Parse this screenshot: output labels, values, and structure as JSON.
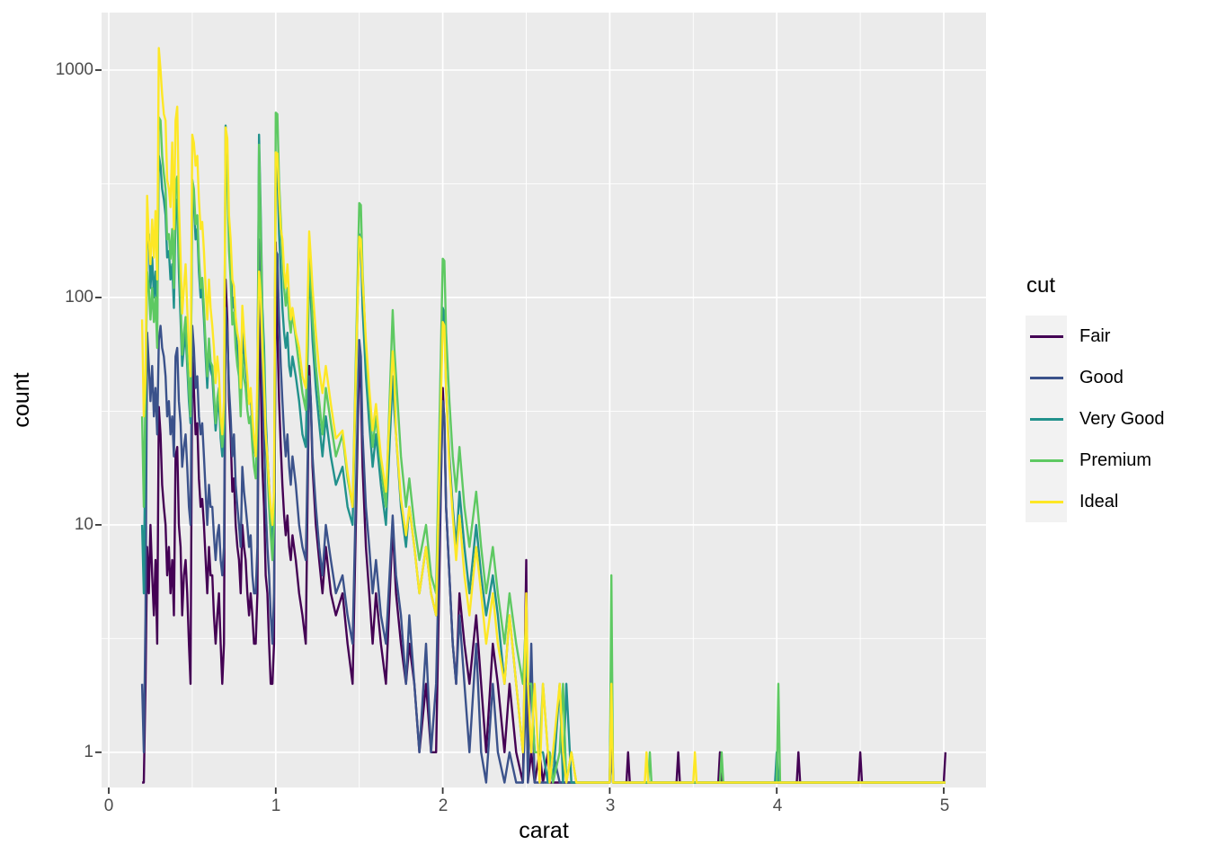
{
  "chart_data": {
    "type": "line",
    "subtype": "freqpoly",
    "title": "",
    "xlabel": "carat",
    "ylabel": "count",
    "legend_title": "cut",
    "legend_position": "right",
    "y_scale": "log10",
    "grid": true,
    "panel_background": "#EBEBEB",
    "grid_color": "#FFFFFF",
    "legend_key_background": "#F2F2F2",
    "tick_color": "#333333",
    "tick_label_color": "#4D4D4D",
    "axis_title_color": "#000000",
    "xlim": [
      -0.043,
      5.253
    ],
    "ylim": [
      0.7,
      1790
    ],
    "x_ticks": [
      0,
      1,
      2,
      3,
      4,
      5
    ],
    "x_tick_labels": [
      "0",
      "1",
      "2",
      "3",
      "4",
      "5"
    ],
    "y_ticks": [
      1,
      10,
      100,
      1000
    ],
    "y_tick_labels": [
      "1",
      "10",
      "100",
      "1000"
    ],
    "minor_x": [
      0.5,
      1.5,
      2.5,
      3.5,
      4.5
    ],
    "minor_y": [
      3.162,
      31.62,
      316.2
    ],
    "bin_x": [
      0.2,
      0.21,
      0.22,
      0.23,
      0.24,
      0.25,
      0.26,
      0.27,
      0.28,
      0.29,
      0.3,
      0.31,
      0.32,
      0.33,
      0.34,
      0.35,
      0.36,
      0.37,
      0.38,
      0.39,
      0.4,
      0.41,
      0.42,
      0.43,
      0.44,
      0.45,
      0.46,
      0.47,
      0.48,
      0.49,
      0.5,
      0.51,
      0.52,
      0.53,
      0.54,
      0.55,
      0.56,
      0.57,
      0.58,
      0.59,
      0.6,
      0.61,
      0.62,
      0.63,
      0.64,
      0.65,
      0.66,
      0.67,
      0.68,
      0.69,
      0.7,
      0.71,
      0.72,
      0.73,
      0.74,
      0.75,
      0.76,
      0.77,
      0.78,
      0.79,
      0.8,
      0.81,
      0.82,
      0.83,
      0.84,
      0.85,
      0.86,
      0.87,
      0.88,
      0.89,
      0.9,
      0.91,
      0.92,
      0.93,
      0.94,
      0.95,
      0.96,
      0.97,
      0.98,
      0.99,
      1.0,
      1.01,
      1.02,
      1.03,
      1.04,
      1.05,
      1.06,
      1.07,
      1.08,
      1.09,
      1.1,
      1.12,
      1.14,
      1.16,
      1.18,
      1.2,
      1.21,
      1.22,
      1.24,
      1.26,
      1.28,
      1.3,
      1.33,
      1.36,
      1.4,
      1.43,
      1.46,
      1.5,
      1.51,
      1.52,
      1.54,
      1.56,
      1.58,
      1.6,
      1.63,
      1.66,
      1.7,
      1.71,
      1.72,
      1.75,
      1.78,
      1.8,
      1.83,
      1.86,
      1.9,
      1.93,
      1.96,
      2.0,
      2.01,
      2.02,
      2.04,
      2.06,
      2.08,
      2.1,
      2.13,
      2.16,
      2.2,
      2.23,
      2.26,
      2.3,
      2.33,
      2.37,
      2.4,
      2.44,
      2.48,
      2.5,
      2.51,
      2.53,
      2.55,
      2.58,
      2.6,
      2.63,
      2.64,
      2.66,
      2.7,
      2.72,
      2.74,
      2.77,
      2.8,
      3.0,
      3.01,
      3.02,
      3.1,
      3.11,
      3.12,
      3.21,
      3.22,
      3.23,
      3.24,
      3.25,
      3.4,
      3.41,
      3.42,
      3.5,
      3.51,
      3.52,
      3.65,
      3.66,
      3.67,
      3.68,
      3.99,
      4.0,
      4.01,
      4.02,
      4.12,
      4.13,
      4.14,
      4.49,
      4.5,
      4.51,
      5.0,
      5.01
    ],
    "series": [
      {
        "name": "Fair",
        "color": "#440154",
        "counts": [
          0,
          0,
          2,
          8,
          5,
          10,
          6,
          4,
          7,
          3,
          33,
          25,
          15,
          12,
          10,
          6,
          8,
          5,
          7,
          4,
          20,
          22,
          10,
          8,
          4,
          6,
          7,
          5,
          3,
          2,
          55,
          40,
          25,
          28,
          16,
          12,
          13,
          10,
          7,
          5,
          8,
          6,
          6,
          4,
          3,
          4,
          5,
          3,
          2,
          3,
          120,
          80,
          35,
          25,
          14,
          16,
          10,
          8,
          7,
          5,
          10,
          8,
          7,
          5,
          4,
          5,
          4,
          3,
          3,
          5,
          95,
          45,
          18,
          12,
          6,
          5,
          3,
          2,
          2,
          3,
          175,
          70,
          35,
          22,
          15,
          11,
          9,
          11,
          8,
          7,
          9,
          7,
          5,
          4,
          3,
          50,
          35,
          18,
          10,
          7,
          5,
          8,
          5,
          4,
          5,
          3,
          2,
          55,
          40,
          18,
          8,
          5,
          3,
          5,
          3,
          2,
          10,
          7,
          5,
          3,
          2,
          3,
          2,
          1,
          2,
          1,
          1,
          40,
          28,
          12,
          6,
          3,
          2,
          5,
          3,
          2,
          4,
          2,
          1,
          3,
          2,
          1,
          2,
          1,
          0,
          7,
          0,
          1,
          0,
          1,
          0,
          1,
          0,
          0,
          0,
          0,
          0,
          0,
          0,
          0,
          2,
          0,
          0,
          1,
          0,
          0,
          0,
          0,
          0,
          0,
          0,
          1,
          0,
          0,
          0,
          0,
          0,
          1,
          0,
          0,
          0,
          0,
          0,
          0,
          0,
          1,
          0,
          0,
          1,
          0,
          0,
          1
        ]
      },
      {
        "name": "Good",
        "color": "#3B528B",
        "counts": [
          2,
          1,
          4,
          70,
          50,
          35,
          50,
          30,
          40,
          25,
          65,
          75,
          60,
          55,
          45,
          30,
          35,
          25,
          30,
          20,
          55,
          60,
          35,
          28,
          18,
          22,
          25,
          18,
          12,
          10,
          75,
          60,
          40,
          45,
          30,
          25,
          28,
          20,
          14,
          10,
          15,
          12,
          12,
          9,
          7,
          9,
          10,
          7,
          6,
          8,
          90,
          70,
          40,
          30,
          20,
          25,
          15,
          12,
          10,
          8,
          18,
          14,
          12,
          10,
          8,
          9,
          6,
          5,
          5,
          8,
          180,
          90,
          40,
          25,
          12,
          8,
          6,
          4,
          3,
          5,
          160,
          155,
          80,
          50,
          35,
          25,
          20,
          25,
          18,
          15,
          20,
          15,
          10,
          8,
          7,
          45,
          35,
          20,
          12,
          8,
          6,
          10,
          7,
          5,
          6,
          4,
          3,
          65,
          55,
          25,
          12,
          8,
          5,
          7,
          4,
          3,
          11,
          8,
          6,
          4,
          2,
          4,
          2,
          1,
          3,
          1,
          2,
          35,
          30,
          12,
          6,
          3,
          2,
          4,
          2,
          1,
          3,
          1,
          0,
          2,
          1,
          0,
          1,
          0,
          0,
          2,
          0,
          3,
          0,
          0,
          0,
          0,
          0,
          1,
          0,
          0,
          0,
          0,
          0,
          0,
          1,
          0,
          0,
          0,
          0,
          0,
          0,
          0,
          0,
          0,
          0,
          0,
          0,
          0,
          0,
          0,
          0,
          0,
          0,
          0,
          0,
          0,
          0,
          0,
          0,
          0,
          0,
          0,
          0,
          0,
          0,
          0
        ]
      },
      {
        "name": "Very Good",
        "color": "#21918C",
        "counts": [
          10,
          5,
          30,
          200,
          190,
          110,
          150,
          100,
          130,
          80,
          420,
          380,
          300,
          270,
          230,
          150,
          160,
          120,
          140,
          90,
          230,
          270,
          130,
          80,
          50,
          60,
          70,
          50,
          35,
          28,
          290,
          260,
          180,
          200,
          130,
          100,
          110,
          80,
          55,
          40,
          60,
          48,
          45,
          34,
          26,
          32,
          35,
          24,
          20,
          26,
          570,
          420,
          200,
          150,
          90,
          100,
          70,
          60,
          50,
          35,
          70,
          55,
          50,
          40,
          34,
          38,
          26,
          22,
          20,
          38,
          520,
          230,
          90,
          60,
          30,
          20,
          15,
          10,
          8,
          12,
          380,
          370,
          190,
          130,
          90,
          70,
          60,
          70,
          50,
          45,
          55,
          45,
          35,
          25,
          22,
          130,
          100,
          65,
          40,
          28,
          20,
          30,
          20,
          15,
          18,
          12,
          10,
          190,
          170,
          90,
          45,
          28,
          18,
          25,
          15,
          10,
          45,
          32,
          25,
          12,
          8,
          12,
          8,
          5,
          8,
          5,
          4,
          90,
          85,
          40,
          20,
          12,
          8,
          14,
          8,
          5,
          10,
          6,
          4,
          6,
          4,
          2,
          4,
          2,
          1,
          3,
          2,
          2,
          1,
          1,
          1,
          0,
          1,
          0,
          2,
          0,
          2,
          0,
          0,
          0,
          3,
          0,
          0,
          0,
          0,
          0,
          0,
          0,
          0,
          0,
          0,
          0,
          0,
          0,
          0,
          0,
          0,
          0,
          0,
          0,
          0,
          1,
          0,
          0,
          0,
          0,
          0,
          0,
          0,
          0,
          0,
          0
        ]
      },
      {
        "name": "Premium",
        "color": "#5EC962",
        "counts": [
          30,
          12,
          40,
          130,
          110,
          80,
          110,
          78,
          100,
          60,
          620,
          600,
          420,
          350,
          300,
          180,
          190,
          148,
          200,
          110,
          310,
          340,
          160,
          100,
          56,
          70,
          82,
          55,
          40,
          30,
          330,
          300,
          210,
          230,
          150,
          110,
          122,
          90,
          62,
          45,
          66,
          52,
          50,
          38,
          28,
          36,
          40,
          26,
          22,
          28,
          420,
          340,
          160,
          120,
          76,
          86,
          60,
          50,
          45,
          30,
          56,
          44,
          40,
          32,
          28,
          30,
          22,
          18,
          16,
          30,
          470,
          200,
          80,
          50,
          25,
          18,
          12,
          9,
          7,
          10,
          650,
          640,
          320,
          220,
          150,
          110,
          92,
          110,
          80,
          70,
          86,
          66,
          50,
          38,
          32,
          150,
          120,
          80,
          50,
          35,
          25,
          40,
          28,
          20,
          25,
          16,
          12,
          260,
          255,
          130,
          60,
          35,
          22,
          30,
          18,
          12,
          88,
          60,
          45,
          20,
          12,
          16,
          10,
          7,
          10,
          6,
          5,
          148,
          145,
          70,
          35,
          20,
          14,
          22,
          12,
          8,
          14,
          8,
          5,
          8,
          5,
          3,
          5,
          3,
          2,
          4,
          2,
          2,
          1,
          1,
          2,
          1,
          1,
          0,
          1,
          2,
          0,
          1,
          0,
          0,
          6,
          0,
          0,
          0,
          0,
          0,
          0,
          0,
          1,
          0,
          0,
          0,
          0,
          0,
          0,
          0,
          0,
          0,
          1,
          0,
          0,
          0,
          2,
          0,
          0,
          0,
          0,
          0,
          0,
          0,
          0,
          0
        ]
      },
      {
        "name": "Ideal",
        "color": "#FDE725",
        "counts": [
          80,
          30,
          45,
          280,
          180,
          140,
          220,
          150,
          240,
          120,
          1250,
          1000,
          780,
          640,
          600,
          330,
          300,
          250,
          480,
          200,
          600,
          690,
          260,
          150,
          85,
          110,
          140,
          90,
          60,
          45,
          520,
          480,
          380,
          420,
          270,
          200,
          215,
          160,
          110,
          80,
          120,
          90,
          75,
          60,
          42,
          55,
          46,
          30,
          25,
          35,
          560,
          500,
          230,
          180,
          120,
          112,
          82,
          70,
          64,
          40,
          92,
          70,
          55,
          45,
          34,
          40,
          30,
          24,
          20,
          45,
          130,
          100,
          60,
          40,
          25,
          20,
          15,
          12,
          10,
          14,
          435,
          430,
          280,
          200,
          180,
          130,
          110,
          140,
          100,
          80,
          90,
          70,
          60,
          45,
          40,
          195,
          150,
          110,
          70,
          48,
          38,
          50,
          34,
          24,
          26,
          17,
          12,
          185,
          180,
          120,
          65,
          40,
          26,
          34,
          20,
          14,
          58,
          45,
          25,
          13,
          9,
          12,
          8,
          5,
          8,
          5,
          4,
          78,
          75,
          40,
          18,
          11,
          7,
          11,
          6,
          4,
          8,
          5,
          3,
          5,
          3,
          2,
          4,
          2,
          1,
          5,
          2,
          1,
          2,
          0,
          2,
          1,
          0,
          1,
          2,
          1,
          0,
          1,
          0,
          0,
          2,
          0,
          0,
          0,
          0,
          0,
          1,
          0,
          0,
          0,
          0,
          0,
          0,
          0,
          1,
          0,
          0,
          0,
          0,
          0,
          0,
          0,
          0,
          0,
          0,
          0,
          0,
          0,
          0,
          0,
          0,
          0
        ]
      }
    ]
  }
}
